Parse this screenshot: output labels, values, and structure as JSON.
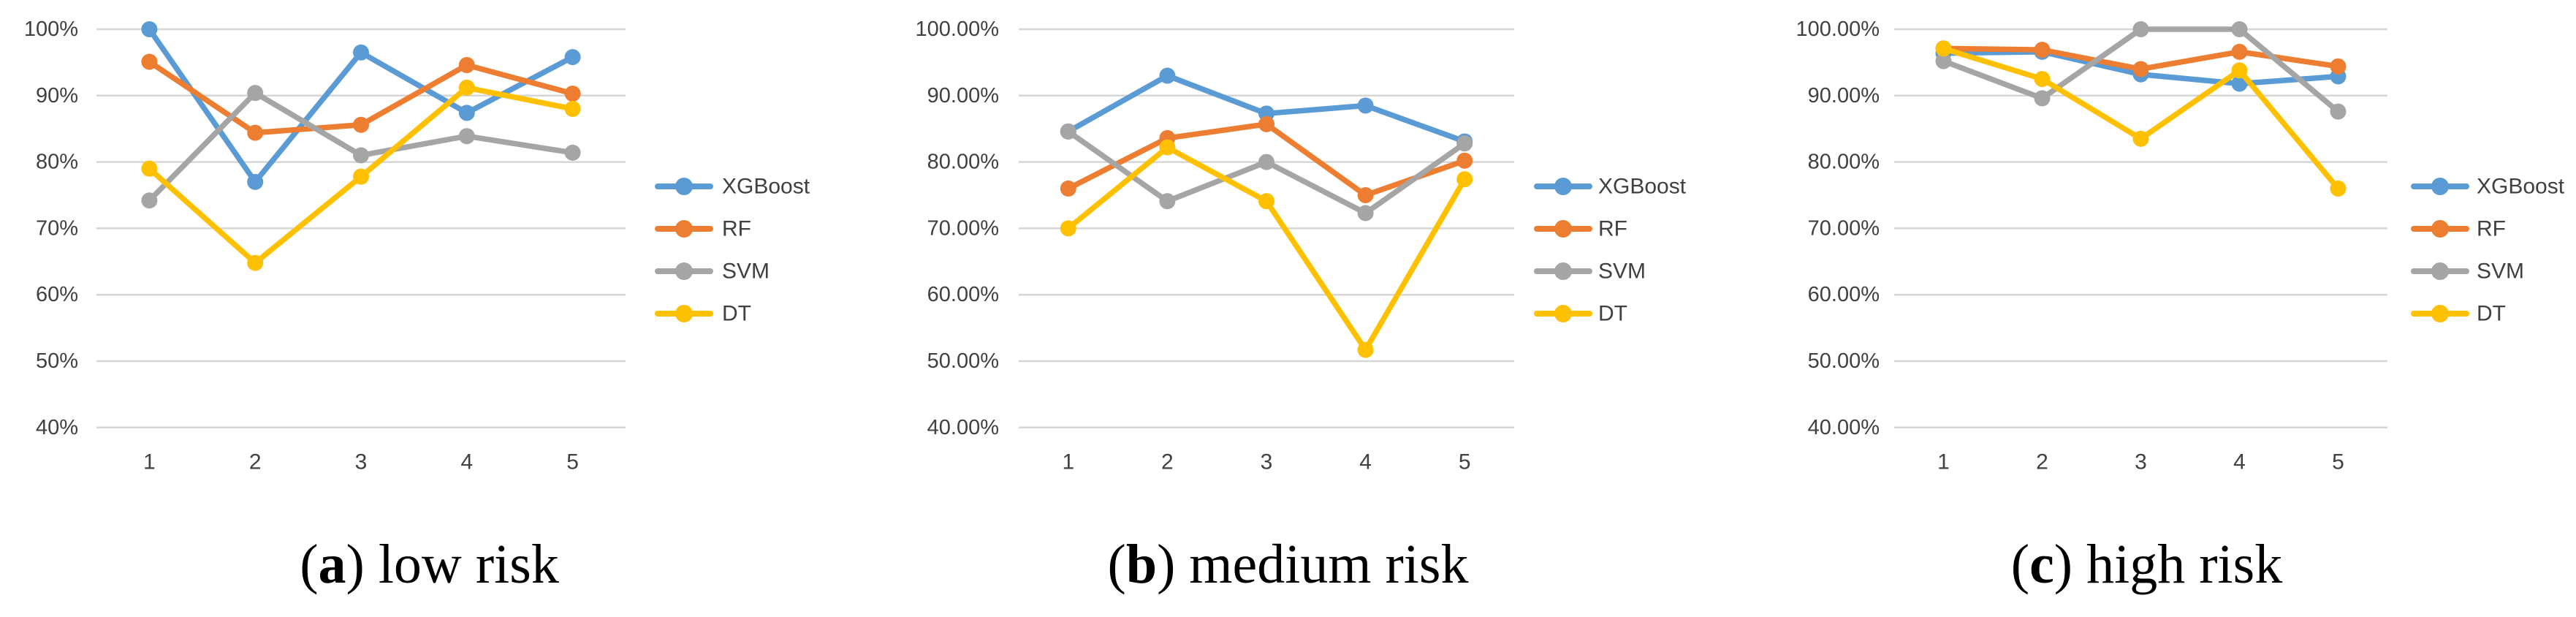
{
  "chart_data": [
    {
      "type": "line",
      "title": "(a) low risk",
      "caption": {
        "letter": "a",
        "label": "low risk"
      },
      "x": [
        1,
        2,
        3,
        4,
        5
      ],
      "x_tick_labels": [
        "1",
        "2",
        "3",
        "4",
        "5"
      ],
      "ylim": [
        40,
        100
      ],
      "y_ticks": [
        100,
        90,
        80,
        70,
        60,
        50,
        40
      ],
      "y_tick_labels": [
        "100%",
        "90%",
        "80%",
        "70%",
        "60%",
        "50%",
        "40%"
      ],
      "grid": true,
      "legend_position": "right",
      "series": [
        {
          "name": "XGBoost",
          "color": "#5B9BD5",
          "values": [
            100,
            77,
            96.5,
            87.4,
            95.8
          ]
        },
        {
          "name": "RF",
          "color": "#ED7D31",
          "values": [
            95.1,
            84.4,
            85.6,
            94.6,
            90.3
          ]
        },
        {
          "name": "SVM",
          "color": "#A5A5A5",
          "values": [
            74.2,
            90.4,
            81,
            83.9,
            81.4
          ]
        },
        {
          "name": "DT",
          "color": "#FFC000",
          "values": [
            79,
            64.8,
            77.8,
            91.2,
            88
          ]
        }
      ]
    },
    {
      "type": "line",
      "title": "(b) medium risk",
      "caption": {
        "letter": "b",
        "label": "medium risk"
      },
      "x": [
        1,
        2,
        3,
        4,
        5
      ],
      "x_tick_labels": [
        "1",
        "2",
        "3",
        "4",
        "5"
      ],
      "ylim": [
        40,
        100
      ],
      "y_ticks": [
        100,
        90,
        80,
        70,
        60,
        50,
        40
      ],
      "y_tick_labels": [
        "100.00%",
        "90.00%",
        "80.00%",
        "70.00%",
        "60.00%",
        "50.00%",
        "40.00%"
      ],
      "grid": true,
      "legend_position": "right",
      "series": [
        {
          "name": "XGBoost",
          "color": "#5B9BD5",
          "values": [
            84.6,
            93,
            87.3,
            88.5,
            83.1
          ]
        },
        {
          "name": "RF",
          "color": "#ED7D31",
          "values": [
            76,
            83.6,
            85.7,
            75,
            80.2
          ]
        },
        {
          "name": "SVM",
          "color": "#A5A5A5",
          "values": [
            84.6,
            74.1,
            80,
            72.3,
            82.8
          ]
        },
        {
          "name": "DT",
          "color": "#FFC000",
          "values": [
            70,
            82.2,
            74.1,
            51.7,
            77.4
          ]
        }
      ]
    },
    {
      "type": "line",
      "title": "(c) high risk",
      "caption": {
        "letter": "c",
        "label": "high risk"
      },
      "x": [
        1,
        2,
        3,
        4,
        5
      ],
      "x_tick_labels": [
        "1",
        "2",
        "3",
        "4",
        "5"
      ],
      "ylim": [
        40,
        100
      ],
      "y_ticks": [
        100,
        90,
        80,
        70,
        60,
        50,
        40
      ],
      "y_tick_labels": [
        "100.00%",
        "90.00%",
        "80.00%",
        "70.00%",
        "60.00%",
        "50.00%",
        "40.00%"
      ],
      "grid": true,
      "legend_position": "right",
      "series": [
        {
          "name": "XGBoost",
          "color": "#5B9BD5",
          "values": [
            96.4,
            96.6,
            93.2,
            91.8,
            92.9
          ]
        },
        {
          "name": "RF",
          "color": "#ED7D31",
          "values": [
            97.1,
            96.9,
            94,
            96.6,
            94.4
          ]
        },
        {
          "name": "SVM",
          "color": "#A5A5A5",
          "values": [
            95.2,
            89.6,
            100,
            100,
            87.6
          ]
        },
        {
          "name": "DT",
          "color": "#FFC000",
          "values": [
            97.1,
            92.5,
            83.5,
            93.8,
            76
          ]
        }
      ]
    }
  ],
  "styles": {
    "gridline_color": "#D6D6D6",
    "axis_text_color": "#404040",
    "background": "#ffffff"
  }
}
